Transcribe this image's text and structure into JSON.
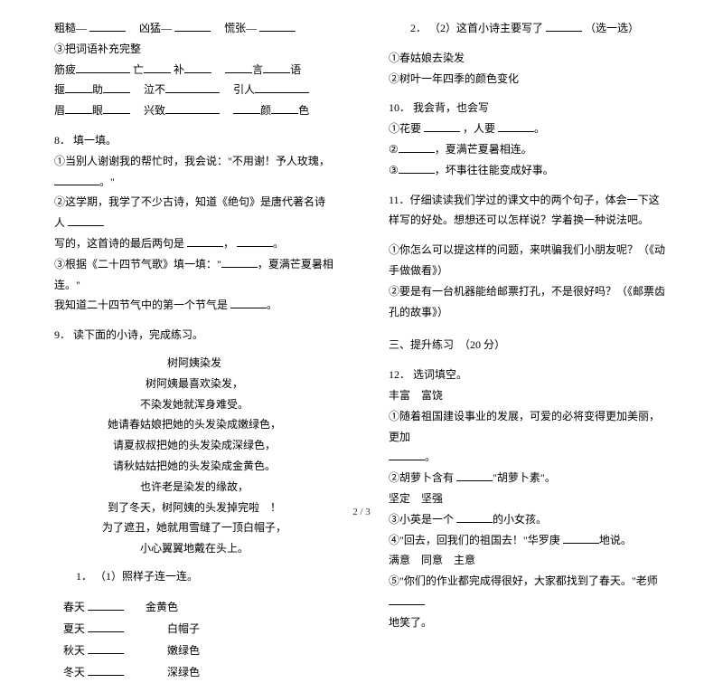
{
  "left": {
    "pair_line": {
      "a": "粗糙—",
      "b": "凶猛—",
      "c": "慌张—"
    },
    "line3_label": "③把词语补充完整",
    "fill_words": {
      "l1": {
        "a": "筋疲",
        "b": "亡",
        "c": "补",
        "d": "言",
        "e": "语"
      },
      "l2": {
        "a": "揠",
        "b": "助",
        "c": "泣不",
        "d": "引人"
      },
      "l3": {
        "a": "眉",
        "b": "眼",
        "c": "兴致",
        "d": "颜",
        "e": "色"
      }
    },
    "q8": {
      "num": "8．",
      "title": "填一填。",
      "t1a": "①当别人谢谢我的帮忙时，我会说：\"不用谢！予人玫瑰，",
      "t1b": "。\"",
      "t2a": "②这学期，我学了不少古诗，知道《绝句》是唐代著名诗人",
      "t2b": "写的，这首诗的最后两句是",
      "t2c": "，",
      "t2d": "。",
      "t3a": "③根据《二十四节气歌》填一填：\"",
      "t3b": "，夏满芒夏暑相连。\"",
      "t3c": "我知道二十四节气中的第一个节气是",
      "t3d": "。"
    },
    "q9": {
      "num": "9．",
      "title": "读下面的小诗，完成练习。",
      "poem_title": "树阿姨染发",
      "poem": [
        "树阿姨最喜欢染发，",
        "不染发她就浑身难受。",
        "她请春姑娘把她的头发染成嫩绿色，",
        "请夏叔叔把她的头发染成深绿色，",
        "请秋姑姑把她的头发染成金黄色。",
        "也许老是染发的缘故，",
        "到了冬天，树阿姨的头发掉完啦　！",
        "为了遮丑，她就用雪缝了一顶白帽子，",
        "小心翼翼地戴在头上。"
      ],
      "sub1_num": "1．",
      "sub1": "（1）照样子连一连。",
      "seasons": {
        "s1": "春天",
        "s2": "夏天",
        "s3": "秋天",
        "s4": "冬天"
      },
      "colors": {
        "c0": "金黄色",
        "c1": "白帽子",
        "c2": "嫩绿色",
        "c3": "深绿色"
      }
    }
  },
  "right": {
    "sub2": {
      "num": "2．",
      "text": "（2）这首小诗主要写了",
      "tail": "（选一选）"
    },
    "opts": {
      "o1": "①春姑娘去染发",
      "o2": "②树叶一年四季的颜色变化"
    },
    "q10": {
      "num": "10．",
      "title": "我会背，也会写",
      "l1a": "①花要",
      "l1b": "，人要",
      "l1c": "。",
      "l2a": "②",
      "l2b": "，夏满芒夏暑相连。",
      "l3a": "③",
      "l3b": "，坏事往往能变成好事。"
    },
    "q11": {
      "num": "11．",
      "text1": "仔细读读我们学过的课文中的两个句子，体会一下这样写的好处。想想还可以怎样说？学着换一种说法吧。",
      "text2": "①你怎么可以提这样的问题，来哄骗我们小朋友呢？（《动手做做看》）",
      "text3": "②要是有一台机器能给邮票打孔，不是很好吗？（《邮票齿孔的故事》）"
    },
    "section3": "三、提升练习　（20 分）",
    "q12": {
      "num": "12．",
      "title": "选词填空。",
      "pair1": "丰富　富饶",
      "l1a": "①随着祖国建设事业的发展，可爱的必将变得更加美丽，更加",
      "l1b": "。",
      "l2a": "②胡萝卜含有",
      "l2b": "\"胡萝卜素\"。",
      "pair2": "坚定　坚强",
      "l3a": "③小英是一个",
      "l3b": "的小女孩。",
      "l4a": "④\"回去，回我们的祖国去！\"华罗庚",
      "l4b": "地说。",
      "pair3": "满意　同意　主意",
      "l5a": "⑤\"你们的作业都完成得很好，大家都找到了春天。\"老师",
      "l5b": "地笑了。"
    }
  },
  "footer": "2 / 3"
}
